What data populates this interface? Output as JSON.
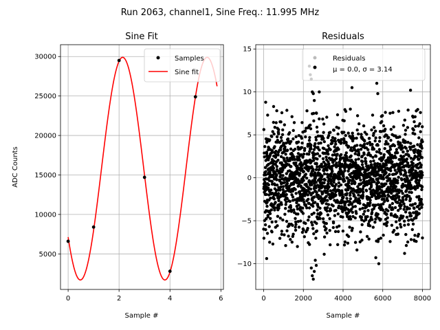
{
  "figure": {
    "suptitle": "Run 2063, channel1, Sine Freq.: 11.995 MHz"
  },
  "chart_data": [
    {
      "type": "line",
      "title": "Sine Fit",
      "xlabel": "Sample #",
      "ylabel": "ADC Counts",
      "xlim": [
        -0.3,
        6.1
      ],
      "ylim": [
        500,
        31500
      ],
      "xticks": [
        0,
        2,
        4,
        6
      ],
      "yticks": [
        5000,
        10000,
        15000,
        20000,
        25000,
        30000
      ],
      "grid": true,
      "legend": {
        "position": "top-right",
        "entries": [
          "Samples",
          "Sine fit"
        ]
      },
      "series": [
        {
          "name": "Samples",
          "kind": "scatter",
          "color": "#000000",
          "x": [
            0,
            1,
            2,
            3,
            4,
            5
          ],
          "y": [
            6600,
            8400,
            29500,
            14700,
            2800,
            24900
          ]
        },
        {
          "name": "Sine fit",
          "kind": "line",
          "color": "#ff0000",
          "model": {
            "offset": 15800,
            "amplitude": 14100,
            "samples_per_cycle": 3.32,
            "peak_sample": 2.14
          },
          "x_range": [
            0,
            5.85
          ]
        }
      ]
    },
    {
      "type": "scatter",
      "title": "Residuals",
      "xlabel": "Sample #",
      "ylabel": "",
      "xlim": [
        -400,
        8400
      ],
      "ylim": [
        -13,
        15.5
      ],
      "xticks": [
        0,
        2000,
        4000,
        6000,
        8000
      ],
      "yticks": [
        -10,
        -5,
        0,
        5,
        10,
        15
      ],
      "grid": true,
      "legend": {
        "position": "top-right",
        "entries": [
          "Residuals",
          "μ = 0.0, σ = 3.14"
        ]
      },
      "series": [
        {
          "name": "Residuals",
          "color": "#000000",
          "stats": {
            "mean": 0.0,
            "std": 3.14
          },
          "x_range": [
            0,
            8000
          ],
          "marked_outliers": [
            {
              "x": 100,
              "y": 8.8
            },
            {
              "x": 200,
              "y": 7.3
            },
            {
              "x": 500,
              "y": 8.3
            },
            {
              "x": 150,
              "y": -9.4
            },
            {
              "x": 300,
              "y": -7.5
            },
            {
              "x": 1700,
              "y": -8.0
            },
            {
              "x": 2300,
              "y": 13.0
            },
            {
              "x": 2350,
              "y": 12.0
            },
            {
              "x": 2400,
              "y": 11.5
            },
            {
              "x": 2450,
              "y": 10.0
            },
            {
              "x": 2500,
              "y": 9.8
            },
            {
              "x": 2550,
              "y": 9.0
            },
            {
              "x": 2400,
              "y": -10.5
            },
            {
              "x": 2450,
              "y": -11.4
            },
            {
              "x": 2500,
              "y": -11.8
            },
            {
              "x": 2550,
              "y": -10.9
            },
            {
              "x": 2600,
              "y": -9.6
            },
            {
              "x": 2650,
              "y": -10.2
            },
            {
              "x": 2800,
              "y": 10.0
            },
            {
              "x": 4450,
              "y": 10.5
            },
            {
              "x": 3050,
              "y": -8.9
            },
            {
              "x": 5700,
              "y": 11.0
            },
            {
              "x": 5750,
              "y": 9.8
            },
            {
              "x": 5800,
              "y": -10.0
            },
            {
              "x": 5650,
              "y": -9.3
            },
            {
              "x": 7400,
              "y": 10.2
            },
            {
              "x": 7100,
              "y": -8.8
            },
            {
              "x": 7900,
              "y": 7.6
            },
            {
              "x": 8000,
              "y": -7.0
            },
            {
              "x": 4700,
              "y": -8.4
            }
          ]
        }
      ]
    }
  ]
}
